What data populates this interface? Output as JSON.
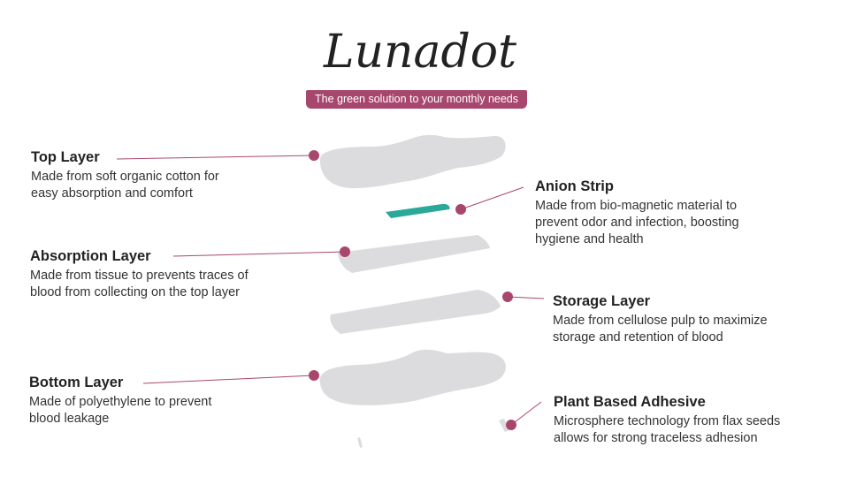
{
  "brand": {
    "logo_text": "Lunadot",
    "tagline": "The green solution to your monthly needs"
  },
  "layers": [
    {
      "id": "top",
      "title": "Top Layer",
      "description": [
        "Made from soft organic cotton for",
        "easy absorption and comfort"
      ]
    },
    {
      "id": "anion",
      "title": "Anion Strip",
      "description": [
        "Made from bio-magnetic material to",
        "prevent odor and infection, boosting",
        "hygiene and health"
      ]
    },
    {
      "id": "absorption",
      "title": "Absorption Layer",
      "description": [
        "Made from tissue to prevents traces of",
        "blood from collecting on the top layer"
      ]
    },
    {
      "id": "storage",
      "title": "Storage Layer",
      "description": [
        "Made from cellulose pulp to maximize",
        "storage and retention of blood"
      ]
    },
    {
      "id": "bottom",
      "title": "Bottom Layer",
      "description": [
        "Made of polyethylene to prevent",
        "blood leakage"
      ]
    },
    {
      "id": "adhesive",
      "title": "Plant Based Adhesive",
      "description": [
        "Microsphere technology from flax seeds",
        "allows for strong traceless adhesion"
      ]
    }
  ],
  "colors": {
    "accent": "#a8476e",
    "layer_gray": "#dcdcde",
    "anion_teal": "#2aa89a"
  }
}
